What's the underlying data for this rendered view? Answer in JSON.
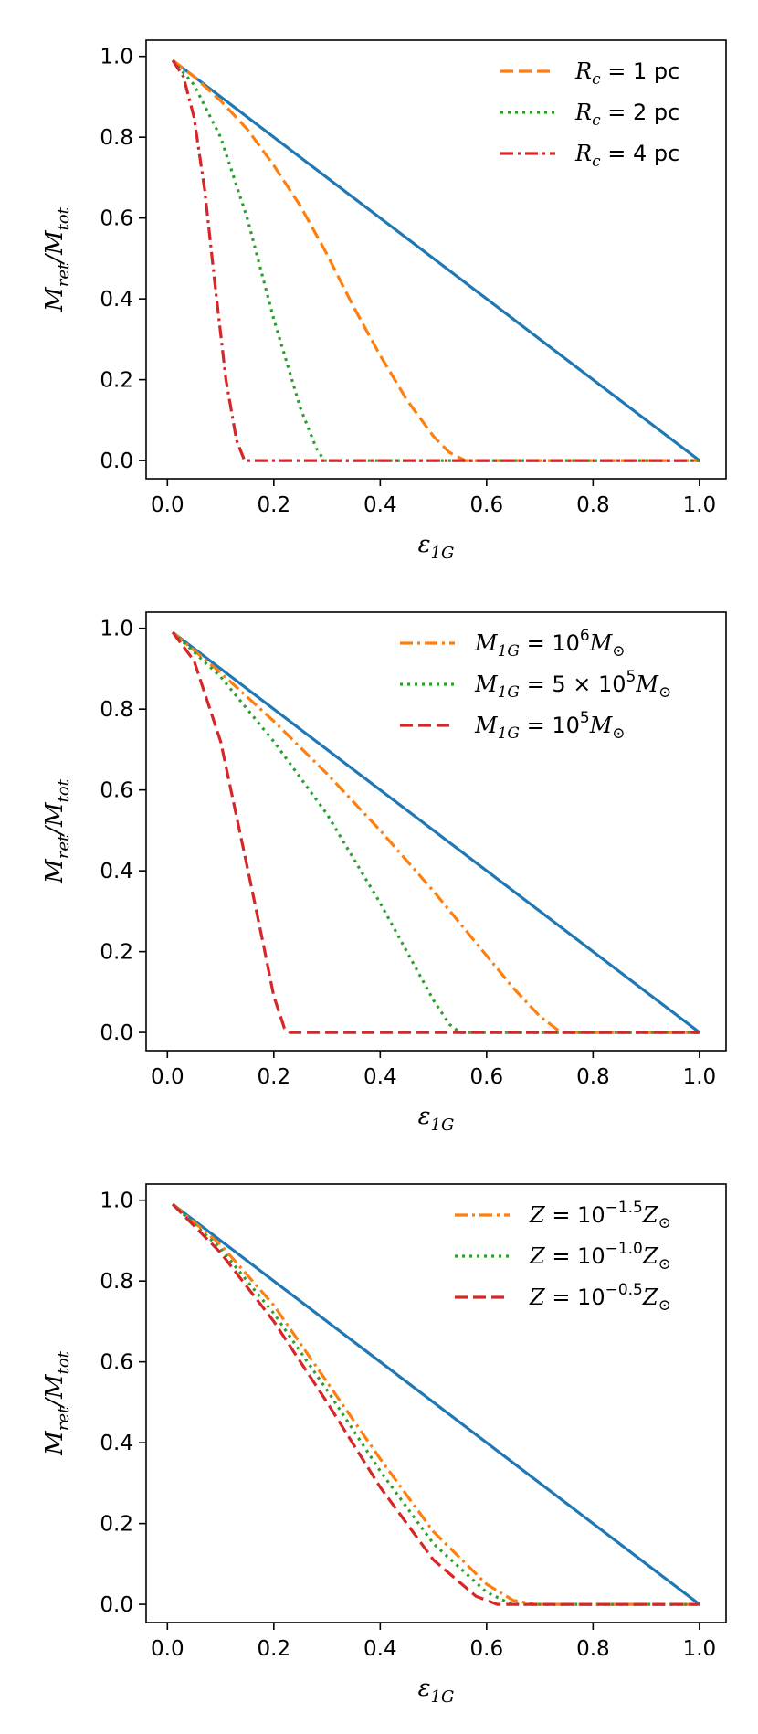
{
  "chart_data": [
    {
      "type": "line",
      "xlabel": "ε1G",
      "ylabel": "Mret/Mtot",
      "xlim": [
        -0.04,
        1.05
      ],
      "ylim": [
        -0.045,
        1.04
      ],
      "xticks": [
        "0.0",
        "0.2",
        "0.4",
        "0.6",
        "0.8",
        "1.0"
      ],
      "yticks": [
        "0.0",
        "0.2",
        "0.4",
        "0.6",
        "0.8",
        "1.0"
      ],
      "legend_position": "top-right",
      "series": [
        {
          "name": "reference",
          "color": "#1f77b4",
          "style": "solid",
          "in_legend": false,
          "x": [
            0.01,
            1.0
          ],
          "y": [
            0.99,
            0.0
          ]
        },
        {
          "name": "Rc = 1 pc",
          "color": "#ff7f0e",
          "style": "dashed",
          "in_legend": true,
          "x": [
            0.01,
            0.05,
            0.1,
            0.15,
            0.2,
            0.25,
            0.3,
            0.35,
            0.4,
            0.45,
            0.5,
            0.53,
            0.56,
            1.0
          ],
          "y": [
            0.99,
            0.95,
            0.89,
            0.82,
            0.73,
            0.63,
            0.51,
            0.38,
            0.26,
            0.15,
            0.06,
            0.02,
            0.0,
            0.0
          ]
        },
        {
          "name": "Rc = 2 pc",
          "color": "#2ca02c",
          "style": "dotted",
          "in_legend": true,
          "x": [
            0.01,
            0.05,
            0.1,
            0.15,
            0.2,
            0.25,
            0.28,
            0.295,
            1.0
          ],
          "y": [
            0.99,
            0.93,
            0.8,
            0.6,
            0.35,
            0.13,
            0.03,
            0.0,
            0.0
          ]
        },
        {
          "name": "Rc = 4 pc",
          "color": "#d62728",
          "style": "dashdot",
          "in_legend": true,
          "x": [
            0.01,
            0.03,
            0.05,
            0.07,
            0.09,
            0.11,
            0.13,
            0.145,
            1.0
          ],
          "y": [
            0.99,
            0.95,
            0.85,
            0.67,
            0.43,
            0.2,
            0.05,
            0.0,
            0.0
          ]
        }
      ],
      "legend": [
        {
          "series": "Rc = 1 pc",
          "label_main": "R",
          "label_sub": "c",
          "label_rest": " = 1 pc"
        },
        {
          "series": "Rc = 2 pc",
          "label_main": "R",
          "label_sub": "c",
          "label_rest": " = 2 pc"
        },
        {
          "series": "Rc = 4 pc",
          "label_main": "R",
          "label_sub": "c",
          "label_rest": " = 4 pc"
        }
      ]
    },
    {
      "type": "line",
      "xlabel": "ε1G",
      "ylabel": "Mret/Mtot",
      "xlim": [
        -0.04,
        1.05
      ],
      "ylim": [
        -0.045,
        1.04
      ],
      "xticks": [
        "0.0",
        "0.2",
        "0.4",
        "0.6",
        "0.8",
        "1.0"
      ],
      "yticks": [
        "0.0",
        "0.2",
        "0.4",
        "0.6",
        "0.8",
        "1.0"
      ],
      "legend_position": "top-right",
      "series": [
        {
          "name": "reference",
          "color": "#1f77b4",
          "style": "solid",
          "in_legend": false,
          "x": [
            0.01,
            1.0
          ],
          "y": [
            0.99,
            0.0
          ]
        },
        {
          "name": "M1G = 10^6 Msun",
          "color": "#ff7f0e",
          "style": "dashdot",
          "in_legend": true,
          "x": [
            0.01,
            0.1,
            0.2,
            0.3,
            0.4,
            0.5,
            0.6,
            0.65,
            0.7,
            0.74,
            1.0
          ],
          "y": [
            0.99,
            0.89,
            0.77,
            0.64,
            0.5,
            0.35,
            0.19,
            0.11,
            0.04,
            0.0,
            0.0
          ]
        },
        {
          "name": "M1G = 5x10^5 Msun",
          "color": "#2ca02c",
          "style": "dotted",
          "in_legend": true,
          "x": [
            0.01,
            0.1,
            0.2,
            0.3,
            0.4,
            0.45,
            0.5,
            0.53,
            0.55,
            1.0
          ],
          "y": [
            0.99,
            0.88,
            0.72,
            0.54,
            0.32,
            0.2,
            0.08,
            0.02,
            0.0,
            0.0
          ]
        },
        {
          "name": "M1G = 10^5 Msun",
          "color": "#d62728",
          "style": "dashed",
          "in_legend": true,
          "x": [
            0.01,
            0.05,
            0.1,
            0.15,
            0.18,
            0.2,
            0.22,
            0.23,
            1.0
          ],
          "y": [
            0.99,
            0.92,
            0.72,
            0.41,
            0.22,
            0.09,
            0.01,
            0.0,
            0.0
          ]
        }
      ],
      "legend": [
        {
          "series": "M1G = 10^6 Msun",
          "label_main": "M",
          "label_sub": "1G",
          "label_rest": " = 10",
          "label_sup": "6",
          "label_end": "M",
          "label_end_sub": "⊙"
        },
        {
          "series": "M1G = 5x10^5 Msun",
          "label_main": "M",
          "label_sub": "1G",
          "label_rest": " = 5 × 10",
          "label_sup": "5",
          "label_end": "M",
          "label_end_sub": "⊙"
        },
        {
          "series": "M1G = 10^5 Msun",
          "label_main": "M",
          "label_sub": "1G",
          "label_rest": " = 10",
          "label_sup": "5",
          "label_end": "M",
          "label_end_sub": "⊙"
        }
      ]
    },
    {
      "type": "line",
      "xlabel": "ε1G",
      "ylabel": "Mret/Mtot",
      "xlim": [
        -0.04,
        1.05
      ],
      "ylim": [
        -0.045,
        1.04
      ],
      "xticks": [
        "0.0",
        "0.2",
        "0.4",
        "0.6",
        "0.8",
        "1.0"
      ],
      "yticks": [
        "0.0",
        "0.2",
        "0.4",
        "0.6",
        "0.8",
        "1.0"
      ],
      "legend_position": "top-right",
      "series": [
        {
          "name": "reference",
          "color": "#1f77b4",
          "style": "solid",
          "in_legend": false,
          "x": [
            0.01,
            1.0
          ],
          "y": [
            0.99,
            0.0
          ]
        },
        {
          "name": "Z = 10^-1.5 Zsun",
          "color": "#ff7f0e",
          "style": "dashdot",
          "in_legend": true,
          "x": [
            0.01,
            0.1,
            0.2,
            0.3,
            0.4,
            0.5,
            0.6,
            0.65,
            0.69,
            1.0
          ],
          "y": [
            0.99,
            0.89,
            0.74,
            0.55,
            0.36,
            0.18,
            0.05,
            0.01,
            0.0,
            0.0
          ]
        },
        {
          "name": "Z = 10^-1.0 Zsun",
          "color": "#2ca02c",
          "style": "dotted",
          "in_legend": true,
          "x": [
            0.01,
            0.1,
            0.2,
            0.3,
            0.4,
            0.5,
            0.6,
            0.64,
            0.66,
            1.0
          ],
          "y": [
            0.99,
            0.88,
            0.72,
            0.53,
            0.33,
            0.15,
            0.03,
            0.005,
            0.0,
            0.0
          ]
        },
        {
          "name": "Z = 10^-0.5 Zsun",
          "color": "#d62728",
          "style": "dashed",
          "in_legend": true,
          "x": [
            0.01,
            0.1,
            0.2,
            0.3,
            0.4,
            0.5,
            0.58,
            0.62,
            1.0
          ],
          "y": [
            0.99,
            0.87,
            0.7,
            0.5,
            0.29,
            0.11,
            0.02,
            0.0,
            0.0
          ]
        }
      ],
      "legend": [
        {
          "series": "Z = 10^-1.5 Zsun",
          "label_main": "Z",
          "label_sub": "",
          "label_rest": " = 10",
          "label_sup": "−1.5",
          "label_end": "Z",
          "label_end_sub": "⊙"
        },
        {
          "series": "Z = 10^-1.0 Zsun",
          "label_main": "Z",
          "label_sub": "",
          "label_rest": " = 10",
          "label_sup": "−1.0",
          "label_end": "Z",
          "label_end_sub": "⊙"
        },
        {
          "series": "Z = 10^-0.5 Zsun",
          "label_main": "Z",
          "label_sub": "",
          "label_rest": " = 10",
          "label_sup": "−0.5",
          "label_end": "Z",
          "label_end_sub": "⊙"
        }
      ]
    }
  ]
}
